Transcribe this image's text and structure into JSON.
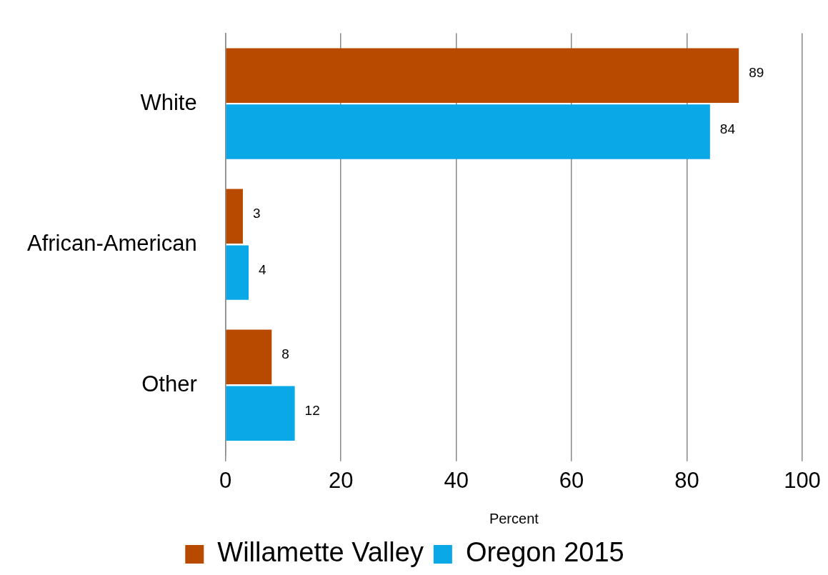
{
  "chart_data": {
    "type": "bar",
    "orientation": "horizontal",
    "categories": [
      "White",
      "African-American",
      "Other"
    ],
    "series": [
      {
        "name": "Willamette Valley",
        "color": "#b84a00",
        "values": [
          89,
          3,
          8
        ]
      },
      {
        "name": "Oregon 2015",
        "color": "#0aa8e6",
        "values": [
          84,
          4,
          12
        ]
      }
    ],
    "xlabel": "Percent",
    "xlim": [
      0,
      100
    ],
    "xticks": [
      0,
      20,
      40,
      60,
      80,
      100
    ],
    "grid": "x",
    "legend": "bottom",
    "data_labels": true
  }
}
